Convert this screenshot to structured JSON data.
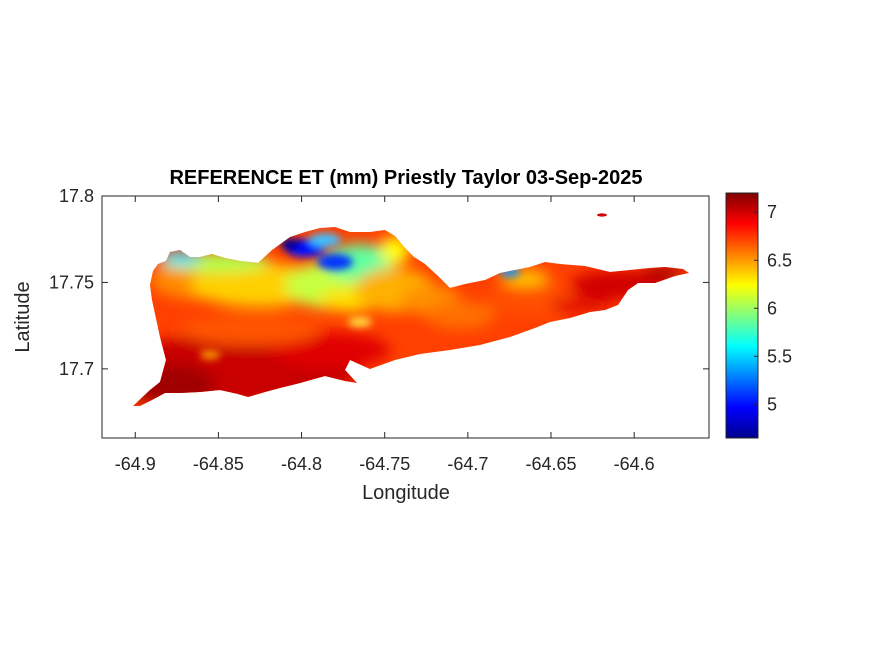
{
  "figure": {
    "title": "REFERENCE ET (mm) Priestly Taylor 03-Sep-2025",
    "xlabel": "Longitude",
    "ylabel": "Latitude"
  },
  "map": {
    "xlim": [
      -64.92,
      -64.555
    ],
    "ylim": [
      17.66,
      17.8
    ],
    "xticks": [
      {
        "value": -64.9,
        "label": "-64.9"
      },
      {
        "value": -64.85,
        "label": "-64.85"
      },
      {
        "value": -64.8,
        "label": "-64.8"
      },
      {
        "value": -64.75,
        "label": "-64.75"
      },
      {
        "value": -64.7,
        "label": "-64.7"
      },
      {
        "value": -64.65,
        "label": "-64.65"
      },
      {
        "value": -64.6,
        "label": "-64.6"
      }
    ],
    "yticks": [
      {
        "value": 17.7,
        "label": "17.7"
      },
      {
        "value": 17.75,
        "label": "17.75"
      },
      {
        "value": 17.8,
        "label": "17.8"
      }
    ]
  },
  "colorbar": {
    "colormap": "jet",
    "range": [
      4.65,
      7.2
    ],
    "ticks": [
      {
        "value": 5,
        "label": "5"
      },
      {
        "value": 5.5,
        "label": "5.5"
      },
      {
        "value": 6,
        "label": "6"
      },
      {
        "value": 6.5,
        "label": "6.5"
      },
      {
        "value": 7,
        "label": "7"
      }
    ]
  },
  "chart_data": {
    "type": "heatmap",
    "title": "REFERENCE ET (mm) Priestly Taylor 03-Sep-2025",
    "xlabel": "Longitude",
    "ylabel": "Latitude",
    "xlim": [
      -64.92,
      -64.555
    ],
    "ylim": [
      17.66,
      17.8
    ],
    "colorbar_range": [
      4.65,
      7.2
    ],
    "colormap": "jet",
    "grid": false,
    "regions": [
      {
        "lon": [
          -64.905,
          -64.7
        ],
        "lat": [
          17.68,
          17.72
        ],
        "value": 7.0
      },
      {
        "lon": [
          -64.88,
          -64.76
        ],
        "lat": [
          17.74,
          17.76
        ],
        "value": 6.3
      },
      {
        "lon": [
          -64.815,
          -64.78
        ],
        "lat": [
          17.755,
          17.77
        ],
        "value": 4.9
      },
      {
        "lon": [
          -64.88,
          -64.86
        ],
        "lat": [
          17.76,
          17.765
        ],
        "value": 5.8
      },
      {
        "lon": [
          -64.76,
          -64.74
        ],
        "lat": [
          17.75,
          17.775
        ],
        "value": 6.2
      },
      {
        "lon": [
          -64.73,
          -64.66
        ],
        "lat": [
          17.72,
          17.75
        ],
        "value": 6.9
      },
      {
        "lon": [
          -64.68,
          -64.67
        ],
        "lat": [
          17.75,
          17.755
        ],
        "value": 5.3
      },
      {
        "lon": [
          -64.65,
          -64.565
        ],
        "lat": [
          17.73,
          17.755
        ],
        "value": 7.1
      },
      {
        "lon": [
          -64.625,
          -64.62
        ],
        "lat": [
          17.788,
          17.79
        ],
        "value": 7.2
      }
    ]
  }
}
